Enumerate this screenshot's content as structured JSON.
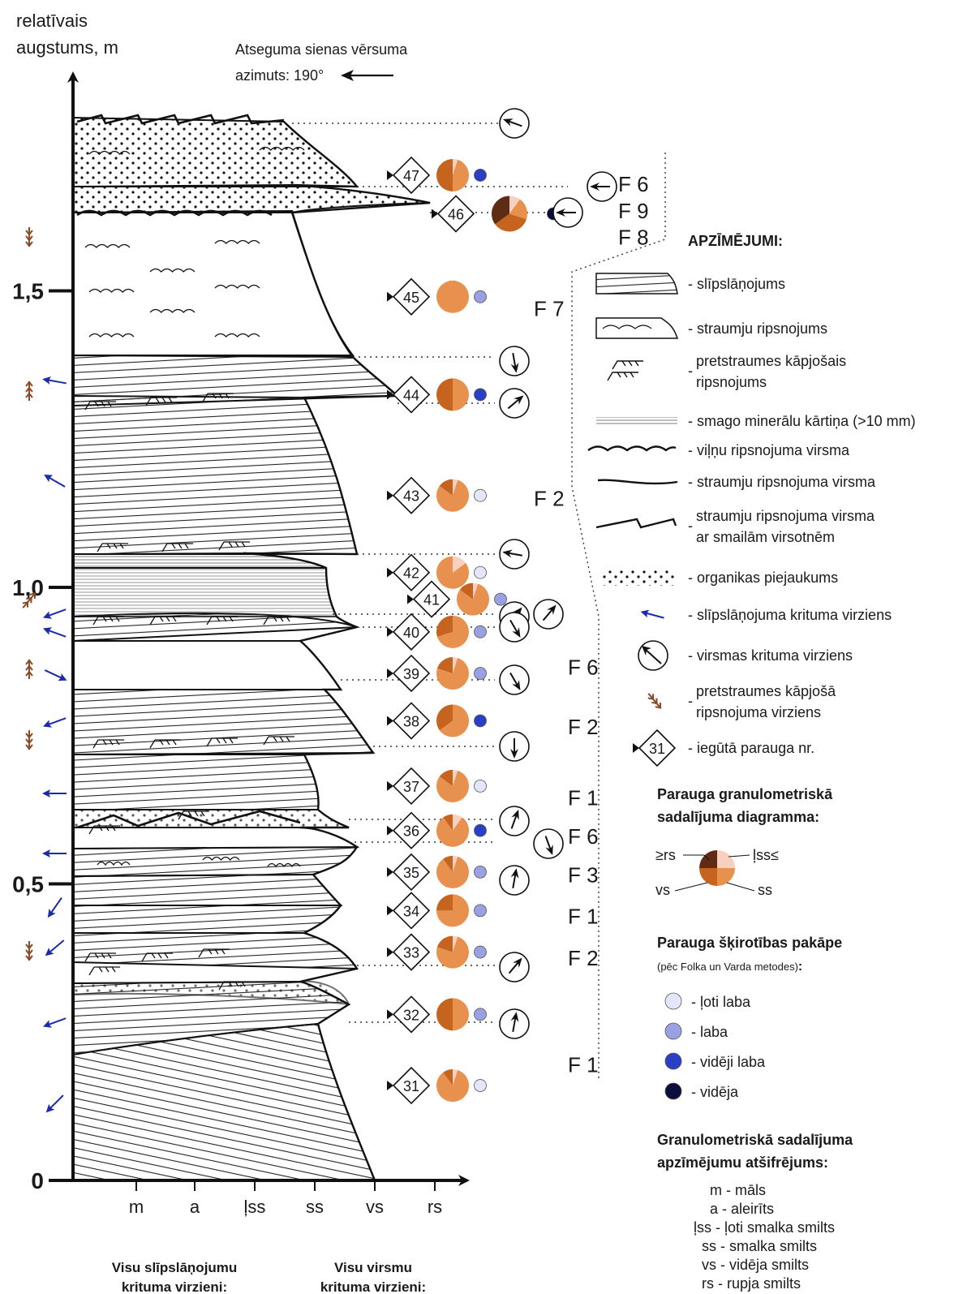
{
  "y_axis_title": [
    "relatīvais",
    "augstums, m"
  ],
  "y_ticks": [
    {
      "value": 0,
      "label": "0"
    },
    {
      "value": 0.5,
      "label": "0,5"
    },
    {
      "value": 1.0,
      "label": "1,0"
    },
    {
      "value": 1.5,
      "label": "1,5"
    }
  ],
  "x_ticks": [
    "m",
    "a",
    "ļss",
    "ss",
    "vs",
    "rs"
  ],
  "azimuth_text": [
    "Atseguma sienas vērsuma",
    "azimuts: 190°"
  ],
  "facies_labels": [
    {
      "text": "F 6",
      "h": 1.68
    },
    {
      "text": "F 9",
      "h": 1.635
    },
    {
      "text": "F 8",
      "h": 1.59
    },
    {
      "text": "F 7",
      "h": 1.47
    },
    {
      "text": "F 2",
      "h": 1.15
    },
    {
      "text": "F 6",
      "h": 0.865
    },
    {
      "text": "F 2",
      "h": 0.765
    },
    {
      "text": "F 1",
      "h": 0.645
    },
    {
      "text": "F 6",
      "h": 0.58
    },
    {
      "text": "F 3",
      "h": 0.515
    },
    {
      "text": "F 1",
      "h": 0.445
    },
    {
      "text": "F 2",
      "h": 0.375
    },
    {
      "text": "F 1",
      "h": 0.195
    }
  ],
  "samples": [
    {
      "nr": "47",
      "h": 1.695,
      "sorting": "vidēji laba",
      "wedges": [
        0.05,
        0.45,
        0.5,
        0
      ]
    },
    {
      "nr": "46",
      "h": 1.63,
      "sorting": "vidēja",
      "wedges": [
        0.1,
        0.2,
        0.35,
        0.35
      ]
    },
    {
      "nr": "45",
      "h": 1.49,
      "sorting": "laba",
      "wedges": [
        0,
        1,
        0,
        0
      ]
    },
    {
      "nr": "44",
      "h": 1.325,
      "sorting": "vidēji laba",
      "wedges": [
        0,
        0.5,
        0.5,
        0
      ]
    },
    {
      "nr": "43",
      "h": 1.155,
      "sorting": "ļoti laba",
      "wedges": [
        0.05,
        0.8,
        0.15,
        0
      ]
    },
    {
      "nr": "42",
      "h": 1.025,
      "sorting": "ļoti laba",
      "wedges": [
        0.15,
        0.85,
        0,
        0
      ]
    },
    {
      "nr": "41",
      "h": 0.98,
      "sorting": "laba",
      "wedges": [
        0.05,
        0.8,
        0.15,
        0
      ]
    },
    {
      "nr": "40",
      "h": 0.925,
      "sorting": "laba",
      "wedges": [
        0,
        0.7,
        0.3,
        0
      ]
    },
    {
      "nr": "39",
      "h": 0.855,
      "sorting": "laba",
      "wedges": [
        0.05,
        0.75,
        0.2,
        0
      ]
    },
    {
      "nr": "38",
      "h": 0.775,
      "sorting": "vidēji laba",
      "wedges": [
        0,
        0.65,
        0.35,
        0
      ]
    },
    {
      "nr": "37",
      "h": 0.665,
      "sorting": "ļoti laba",
      "wedges": [
        0.05,
        0.8,
        0.15,
        0
      ]
    },
    {
      "nr": "36",
      "h": 0.59,
      "sorting": "vidēji laba",
      "wedges": [
        0.1,
        0.8,
        0.1,
        0
      ]
    },
    {
      "nr": "35",
      "h": 0.52,
      "sorting": "laba",
      "wedges": [
        0.05,
        0.85,
        0.1,
        0
      ]
    },
    {
      "nr": "34",
      "h": 0.455,
      "sorting": "laba",
      "wedges": [
        0,
        0.75,
        0.25,
        0
      ]
    },
    {
      "nr": "33",
      "h": 0.385,
      "sorting": "laba",
      "wedges": [
        0.05,
        0.75,
        0.2,
        0
      ]
    },
    {
      "nr": "32",
      "h": 0.28,
      "sorting": "laba",
      "wedges": [
        0,
        0.5,
        0.5,
        0
      ]
    },
    {
      "nr": "31",
      "h": 0.16,
      "sorting": "ļoti laba",
      "wedges": [
        0.05,
        0.85,
        0.1,
        0
      ]
    }
  ],
  "colors": {
    "wedges": [
      "#f7d0c0",
      "#e8904e",
      "#c5641f",
      "#5e2c14"
    ],
    "sorting": {
      "ļoti laba": "#e4e6fb",
      "laba": "#9aa1e2",
      "vidēji laba": "#2a3fc6",
      "vidēja": "#0b0d3a"
    },
    "blue_arrow": "#1b2aa8",
    "brown_arrow": "#8a4a25"
  },
  "legend": {
    "title": "APZĪMĒJUMI:",
    "items": [
      {
        "icon": "cross-bedding",
        "text": [
          "- slīpslāņojums"
        ]
      },
      {
        "icon": "current-ripple",
        "text": [
          "- straumju ripsnojums"
        ]
      },
      {
        "icon": "climbing-ripple",
        "text": [
          "pretstraumes kāpjošais",
          "ripsnojums"
        ]
      },
      {
        "icon": "heavy-minerals",
        "text": [
          "- smago minerālu kārtiņa (>10 mm)"
        ]
      },
      {
        "icon": "wave-surface",
        "text": [
          "- viļņu ripsnojuma virsma"
        ]
      },
      {
        "icon": "current-surface",
        "text": [
          "- straumju ripsnojuma virsma"
        ]
      },
      {
        "icon": "sharp-crest-surface",
        "text": [
          "straumju ripsnojuma virsma",
          "ar smailām virsotnēm"
        ]
      },
      {
        "icon": "organics",
        "text": [
          "- organikas piejaukums"
        ]
      },
      {
        "icon": "blue-arrow",
        "text": [
          "- slīpslāņojuma krituma virziens"
        ]
      },
      {
        "icon": "circle-arrow",
        "text": [
          "- virsmas krituma virziens"
        ]
      },
      {
        "icon": "brown-arrow",
        "text": [
          "pretstraumes kāpjošā",
          "ripsnojuma virziens"
        ]
      },
      {
        "icon": "sample-diamond",
        "sample": "31",
        "text": [
          "- iegūtā parauga nr."
        ]
      }
    ]
  },
  "pie_legend": {
    "title": [
      "Parauga granulometriskā",
      "sadalījuma diagramma:"
    ],
    "labels": {
      "top_left": "≥rs",
      "top_right": "ļss≤",
      "bottom_left": "vs",
      "bottom_right": "ss"
    }
  },
  "sorting_legend": {
    "title": "Parauga šķirotības pakāpe",
    "subtitle": "(pēc Folka un Varda metodes)",
    "subtitle_colon": ":",
    "items": [
      "ļoti laba",
      "laba",
      "vidēji laba",
      "vidēja"
    ]
  },
  "granulometry_legend": {
    "title": [
      "Granulometriskā sadalījuma",
      "apzīmējumu atšifrējums:"
    ],
    "items": [
      {
        "code": "m",
        "text": "māls"
      },
      {
        "code": "a",
        "text": "aleirīts"
      },
      {
        "code": "ļss",
        "text": "ļoti smalka smilts"
      },
      {
        "code": "ss",
        "text": "smalka smilts"
      },
      {
        "code": "vs",
        "text": "vidēja smilts"
      },
      {
        "code": "rs",
        "text": "rupja smilts"
      }
    ]
  },
  "bottom_captions": [
    [
      "Visu slīpslāņojumu",
      "krituma virzieni:"
    ],
    [
      "Visu virsmu",
      "krituma virzieni:"
    ]
  ]
}
